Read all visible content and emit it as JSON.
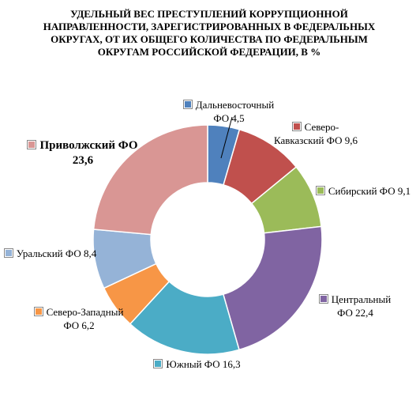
{
  "chart_data": {
    "type": "donut",
    "title": "УДЕЛЬНЫЙ ВЕС ПРЕСТУПЛЕНИЙ КОРРУПЦИОННОЙ НАПРАВЛЕННОСТИ, ЗАРЕГИСТРИРОВАННЫХ В ФЕДЕРАЛЬНЫХ ОКРУГАХ, ОТ ИХ ОБЩЕГО КОЛИЧЕСТВА ПО ФЕДЕРАЛЬНЫМ ОКРУГАМ РОССИЙСКОЙ ФЕДЕРАЦИИ, В %",
    "categories": [
      "Дальневосточный ФО",
      "Северо-Кавказский ФО",
      "Сибирский ФО",
      "Центральный ФО",
      "Южный ФО",
      "Северо-Западный ФО",
      "Уральский ФО",
      "Приволжский ФО"
    ],
    "values": [
      4.5,
      9.6,
      9.1,
      22.4,
      16.3,
      6.2,
      8.4,
      23.6
    ],
    "value_labels": [
      "4,5",
      "9,6",
      "9,1",
      "22,4",
      "16,3",
      "6,2",
      "8,4",
      "23,6"
    ],
    "colors": [
      "#4f81bd",
      "#c0504d",
      "#9bbb59",
      "#8064a2",
      "#4bacc6",
      "#f79646",
      "#95b3d7",
      "#d99694"
    ]
  }
}
